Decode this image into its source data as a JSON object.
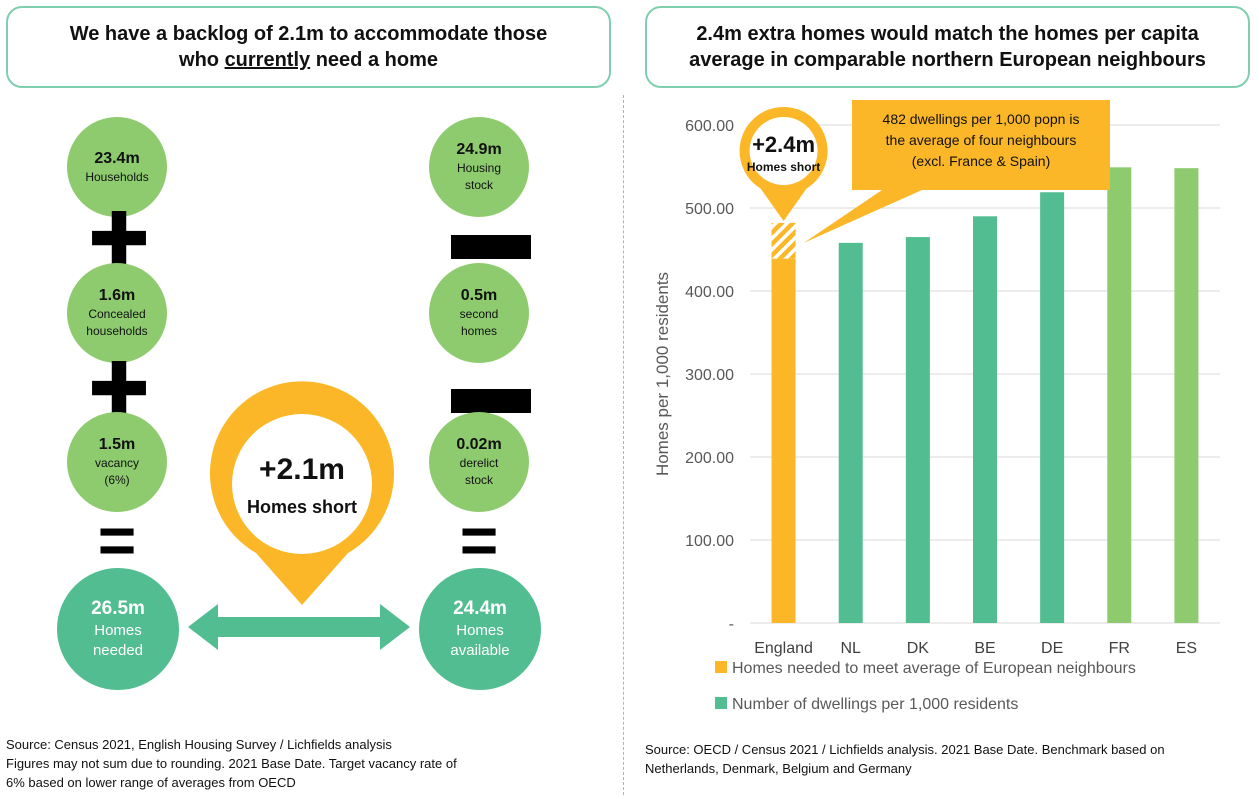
{
  "left": {
    "title_line1": "We have a backlog of 2.1m to accommodate those",
    "title_pre": "who ",
    "title_underlined": "currently",
    "title_post": " need a home",
    "demand": [
      {
        "value": "23.4m",
        "label1": "Households",
        "label2": ""
      },
      {
        "value": "1.6m",
        "label1": "Concealed",
        "label2": "households"
      },
      {
        "value": "1.5m",
        "label1": "vacancy",
        "label2": "(6%)"
      }
    ],
    "supply": [
      {
        "value": "24.9m",
        "label1": "Housing",
        "label2": "stock"
      },
      {
        "value": "0.5m",
        "label1": "second",
        "label2": "homes"
      },
      {
        "value": "0.02m",
        "label1": "derelict",
        "label2": "stock"
      }
    ],
    "needed": {
      "value": "26.5m",
      "label1": "Homes",
      "label2": "needed"
    },
    "available": {
      "value": "24.4m",
      "label1": "Homes",
      "label2": "available"
    },
    "gap": {
      "value": "+2.1m",
      "label": "Homes short"
    },
    "ops": {
      "plus": "✚",
      "minus": "▬",
      "equals": "="
    },
    "source_lines": [
      "Source: Census 2021, English Housing Survey / Lichfields analysis",
      "Figures may not sum due to rounding. 2021 Base Date. Target vacancy rate of",
      "6% based on lower range of averages from OECD"
    ]
  },
  "right": {
    "title_line1": "2.4m extra homes would match the homes per capita",
    "title_line2": "average in comparable northern European neighbours",
    "pin": {
      "value": "+2.4m",
      "label": "Homes short"
    },
    "callout_lines": [
      "482 dwellings per 1,000 popn is",
      "the average of four neighbours",
      "(excl. France & Spain)"
    ],
    "source_lines": [
      "Source: OECD / Census 2021 / Lichfields analysis. 2021 Base Date. Benchmark based on",
      "Netherlands, Denmark, Belgium and Germany"
    ]
  },
  "chart_data": {
    "type": "bar",
    "ylabel": "Homes per 1,000 residents",
    "ylim": [
      0,
      600
    ],
    "yticks": [
      "-",
      "100.00",
      "200.00",
      "300.00",
      "400.00",
      "500.00",
      "600.00"
    ],
    "grid": true,
    "categories": [
      "England",
      "NL",
      "DK",
      "BE",
      "DE",
      "FR",
      "ES"
    ],
    "series": [
      {
        "name": "Number of dwellings per 1,000 residents",
        "values": [
          439,
          458,
          465,
          490,
          519,
          549,
          548
        ],
        "color": "#52bd91"
      },
      {
        "name": "Homes needed to meet average of European neighbours",
        "values": [
          43,
          0,
          0,
          0,
          0,
          0,
          0
        ],
        "color": "#fbb727"
      }
    ],
    "bar_colors": [
      "#fbb727",
      "#52bd91",
      "#52bd91",
      "#52bd91",
      "#52bd91",
      "#8dcb6e",
      "#8dcb6e"
    ],
    "legend_placement": "bottom",
    "legend": [
      {
        "label": "Homes needed to meet average of European neighbours",
        "color": "#fbb727"
      },
      {
        "label": "Number of dwellings per 1,000 residents",
        "color": "#52bd91"
      }
    ]
  }
}
